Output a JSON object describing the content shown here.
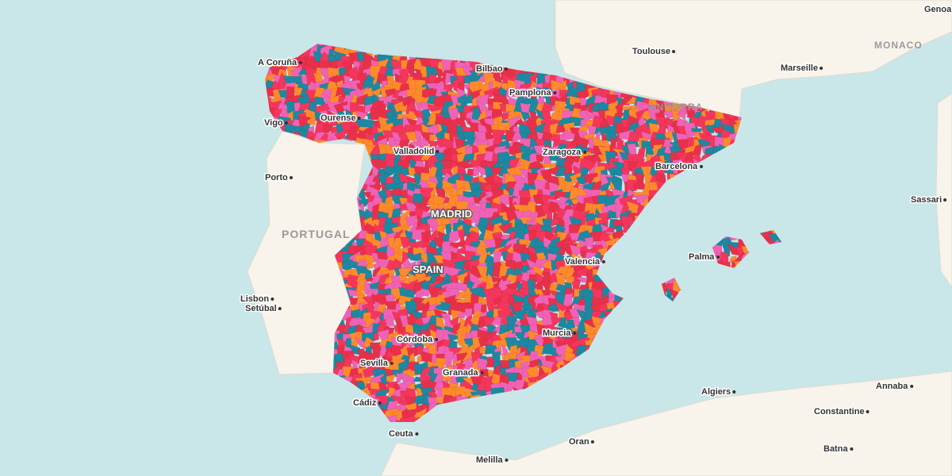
{
  "map": {
    "labels": [
      {
        "text": "A Coruña"
      },
      {
        "text": "Bilbao"
      },
      {
        "text": "Pamplona"
      },
      {
        "text": "Vigo"
      },
      {
        "text": "Ourense"
      },
      {
        "text": "Valladolid"
      },
      {
        "text": "Zaragoza"
      },
      {
        "text": "Barcelona"
      },
      {
        "text": "Toulouse"
      },
      {
        "text": "Marseille"
      },
      {
        "text": "MONACO"
      },
      {
        "text": "Genoa"
      },
      {
        "text": "ANDORRA"
      },
      {
        "text": "Porto"
      },
      {
        "text": "MADRID"
      },
      {
        "text": "PORTUGAL"
      },
      {
        "text": "SPAIN"
      },
      {
        "text": "Valencia"
      },
      {
        "text": "Palma"
      },
      {
        "text": "Sassari"
      },
      {
        "text": "Lisbon"
      },
      {
        "text": "Setúbal"
      },
      {
        "text": "Córdoba"
      },
      {
        "text": "Murcia"
      },
      {
        "text": "Sevilla"
      },
      {
        "text": "Granada"
      },
      {
        "text": "Algiers"
      },
      {
        "text": "Annaba"
      },
      {
        "text": "Constantine"
      },
      {
        "text": "Cádiz"
      },
      {
        "text": "Ceuta"
      },
      {
        "text": "Oran"
      },
      {
        "text": "Melilla"
      },
      {
        "text": "Batna"
      }
    ]
  }
}
